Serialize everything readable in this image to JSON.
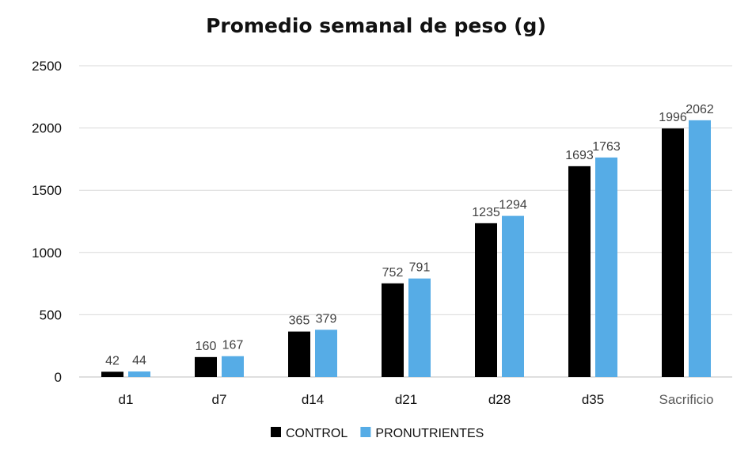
{
  "chart_data": {
    "type": "bar",
    "title": "Promedio semanal de peso (g)",
    "categories": [
      "d1",
      "d7",
      "d14",
      "d21",
      "d28",
      "d35",
      "Sacrificio"
    ],
    "series": [
      {
        "name": "CONTROL",
        "color": "#000000",
        "values": [
          42,
          160,
          365,
          752,
          1235,
          1693,
          1996
        ]
      },
      {
        "name": "PRONUTRIENTES",
        "color": "#56ACE6",
        "values": [
          44,
          167,
          379,
          791,
          1294,
          1763,
          2062
        ]
      }
    ],
    "ylim": [
      0,
      2500
    ],
    "yticks": [
      0,
      500,
      1000,
      1500,
      2000,
      2500
    ],
    "xlabel": "",
    "ylabel": "",
    "grid": true,
    "legend_position": "bottom",
    "data_labels": true
  }
}
